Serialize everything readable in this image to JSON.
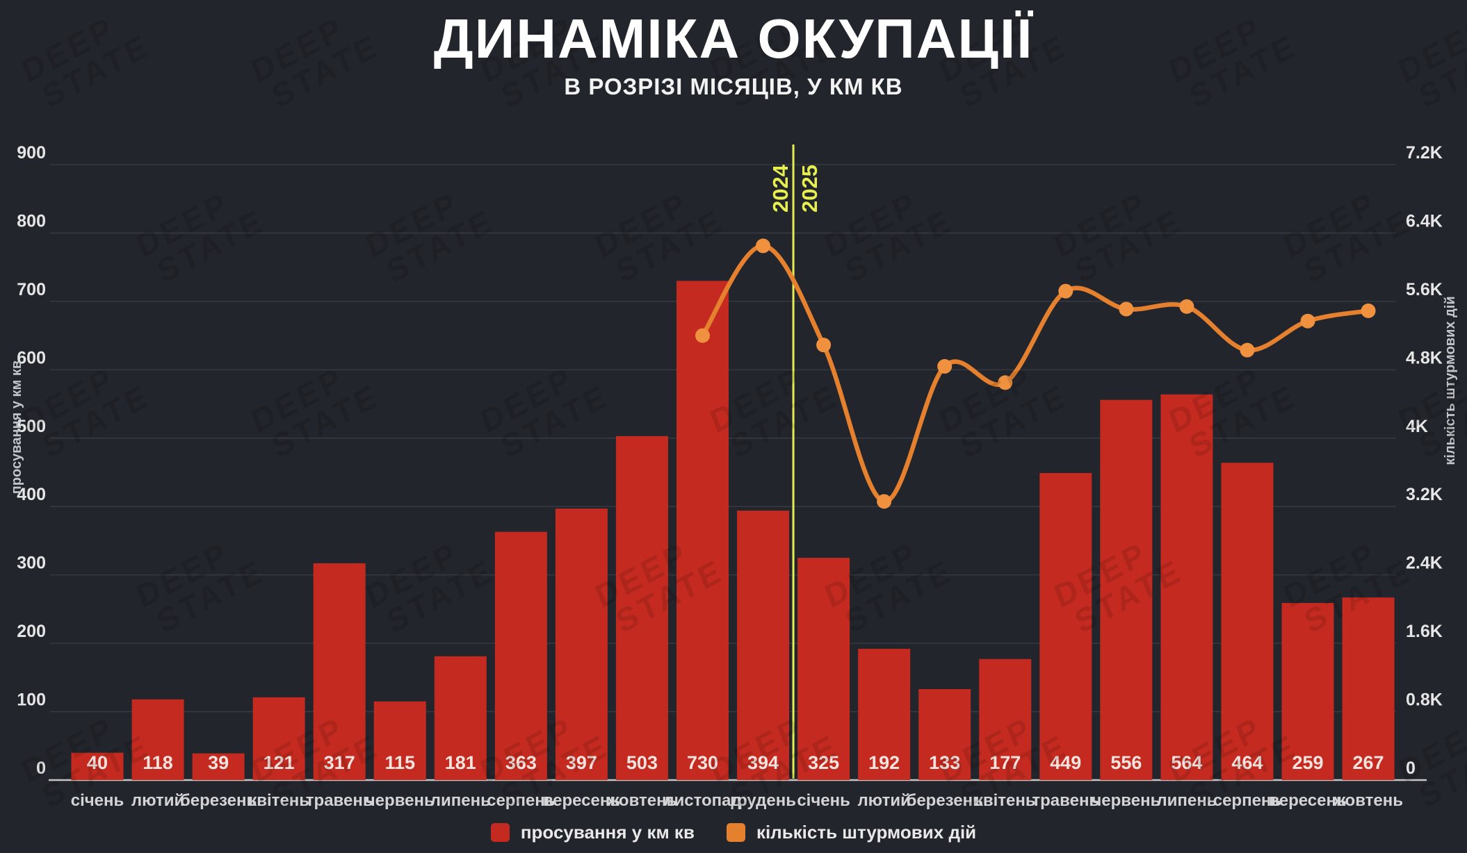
{
  "title": "ДИНАМІКА ОКУПАЦІЇ",
  "subtitle": "В РОЗРІЗІ МІСЯЦІВ, У КМ КВ",
  "watermark": {
    "line1": "DEEP",
    "line2": "STATE"
  },
  "colors": {
    "background": "#22252b",
    "bar": "#c42a1f",
    "line": "#e5802f",
    "dot": "#f0913f",
    "divider": "#e7ef4f",
    "grid": "#363a41",
    "axis_line": "#c6c6c6",
    "tick_text": "#e6e6e6",
    "month_text": "#d4d4d6",
    "bar_value_text": "#f4e4e0",
    "axis_title_text": "#c2c5c9"
  },
  "left_axis": {
    "title": "просування у км кв",
    "ticks": [
      {
        "label": "0",
        "value": 0
      },
      {
        "label": "100",
        "value": 100
      },
      {
        "label": "200",
        "value": 200
      },
      {
        "label": "300",
        "value": 300
      },
      {
        "label": "400",
        "value": 400
      },
      {
        "label": "500",
        "value": 500
      },
      {
        "label": "600",
        "value": 600
      },
      {
        "label": "700",
        "value": 700
      },
      {
        "label": "800",
        "value": 800
      },
      {
        "label": "900",
        "value": 900
      }
    ]
  },
  "right_axis": {
    "title": "кількість штурмових дій",
    "ticks": [
      {
        "label": "0",
        "value": 0
      },
      {
        "label": "0.8K",
        "value": 800
      },
      {
        "label": "1.6K",
        "value": 1600
      },
      {
        "label": "2.4K",
        "value": 2400
      },
      {
        "label": "3.2K",
        "value": 3200
      },
      {
        "label": "4K",
        "value": 4000
      },
      {
        "label": "4.8K",
        "value": 4800
      },
      {
        "label": "5.6K",
        "value": 5600
      },
      {
        "label": "6.4K",
        "value": 6400
      },
      {
        "label": "7.2K",
        "value": 7200
      }
    ]
  },
  "year_divider": {
    "after_index": 11,
    "left_label": "2024",
    "right_label": "2025"
  },
  "legend": [
    {
      "label": "просування у км кв",
      "color": "#c42a1f"
    },
    {
      "label": "кількість штурмових дій",
      "color": "#e5802f"
    }
  ],
  "chart_data": {
    "type": "bar+line combo",
    "categories": [
      "січень",
      "лютий",
      "березень",
      "квітень",
      "травень",
      "червень",
      "липень",
      "серпень",
      "вересень",
      "жовтень",
      "листопад",
      "грудень",
      "січень",
      "лютий",
      "березень",
      "квітень",
      "травень",
      "червень",
      "липень",
      "серпень",
      "вересень",
      "жовтень"
    ],
    "series": [
      {
        "name": "просування у км кв",
        "type": "bar",
        "axis": "left",
        "values": [
          40,
          118,
          39,
          121,
          317,
          115,
          181,
          363,
          397,
          503,
          730,
          394,
          325,
          192,
          133,
          177,
          449,
          556,
          564,
          464,
          259,
          267
        ]
      },
      {
        "name": "кількість штурмових дій",
        "type": "line",
        "axis": "right",
        "values": [
          null,
          null,
          null,
          null,
          null,
          null,
          null,
          null,
          null,
          null,
          5200,
          6250,
          5090,
          3260,
          4840,
          4650,
          5720,
          5510,
          5540,
          5030,
          5370,
          5490
        ]
      }
    ],
    "left_ylim": [
      0,
      900
    ],
    "right_ylim": [
      0,
      7200
    ],
    "grid": true,
    "legend_position": "bottom"
  }
}
